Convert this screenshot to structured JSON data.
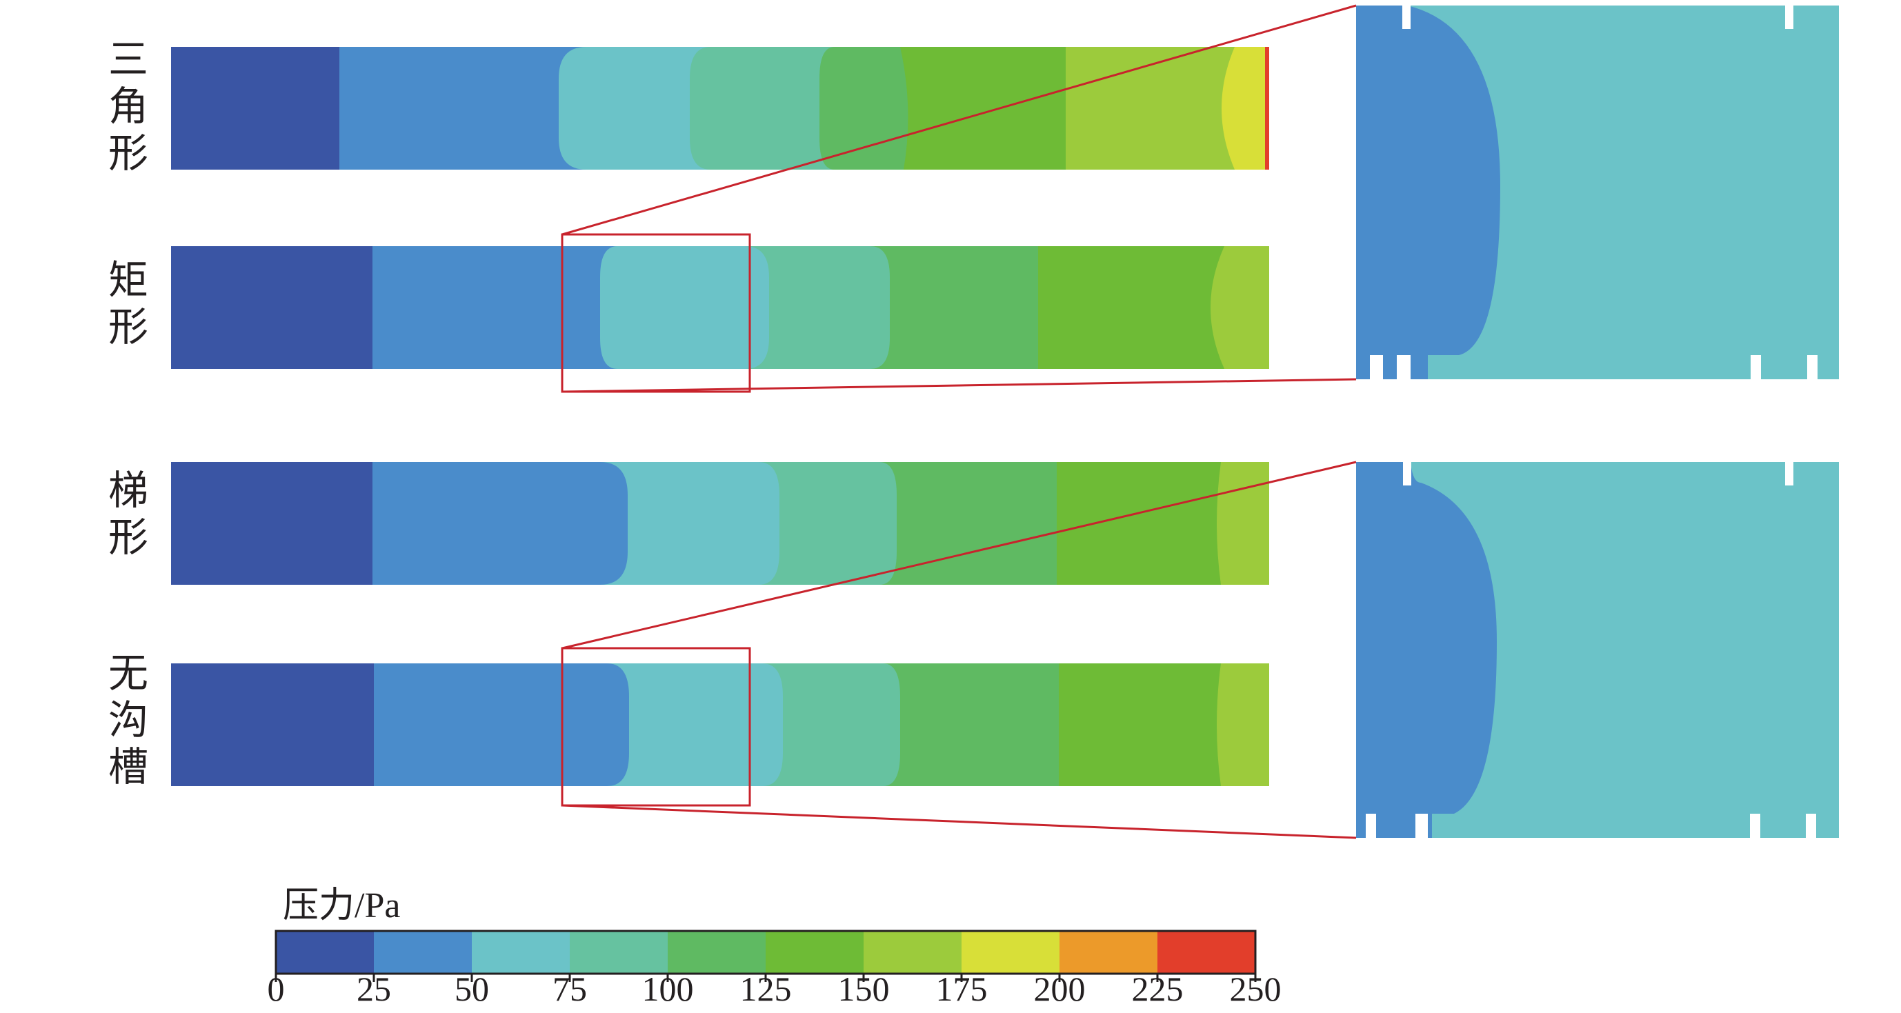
{
  "rows": [
    {
      "label": "三角形"
    },
    {
      "label": "矩形"
    },
    {
      "label": "梯形"
    },
    {
      "label": "无沟槽"
    }
  ],
  "legend": {
    "title": "压力/Pa",
    "ticks": [
      "0",
      "25",
      "50",
      "75",
      "100",
      "125",
      "150",
      "175",
      "200",
      "225",
      "250"
    ],
    "colors": [
      "#3a55a4",
      "#4a8ccb",
      "#6bc3c8",
      "#66c2a0",
      "#5fba62",
      "#6ebb36",
      "#9ccb3c",
      "#d8df38",
      "#ec9a2a",
      "#e23e2b"
    ]
  },
  "colors": {
    "zoom_frame": "#c8232c",
    "band_dark_blue": "#3a55a4",
    "band_blue": "#4a8ccb",
    "band_cyan": "#6bc3c8",
    "band_teal": "#66c2a0",
    "band_green": "#5fba62",
    "band_mid_green": "#6ebb36",
    "band_yellow_green": "#9ccb3c",
    "band_yellow": "#d8df38"
  }
}
